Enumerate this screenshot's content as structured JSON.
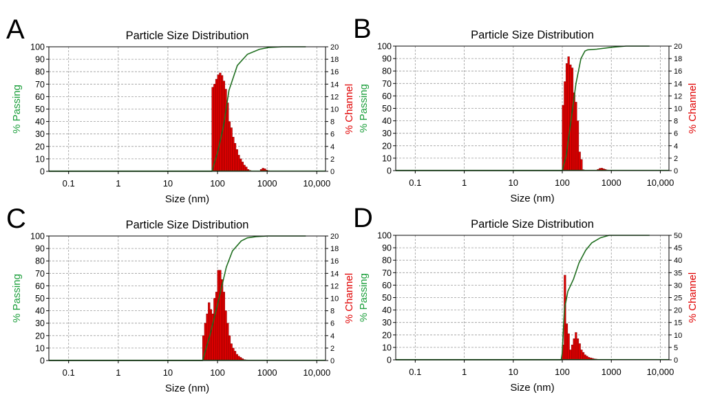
{
  "figure": {
    "colors": {
      "bars": "#e00000",
      "bar_edge": "#7a0000",
      "cumulative_line": "#1f6e1f",
      "left_axis_label": "#1a9e3a",
      "right_axis_label": "#e00000",
      "grid": "#9a9a9a"
    }
  },
  "chart_data": [
    {
      "panel_letter": "A",
      "type": "bar",
      "title": "Particle Size Distribution",
      "xlabel": "Size (nm)",
      "ylabel_left": "% Passing",
      "ylabel_right": "% Channel",
      "x_scale": "log",
      "xlim": [
        0.04,
        15000
      ],
      "x_ticks": [
        0.1,
        1,
        10,
        100,
        1000,
        10000
      ],
      "x_tick_labels": [
        "0.1",
        "1",
        "10",
        "100",
        "1000",
        "10,000"
      ],
      "ylim_left": [
        0,
        100
      ],
      "y_ticks_left": [
        0,
        10,
        20,
        30,
        40,
        50,
        60,
        70,
        80,
        90,
        100
      ],
      "ylim_right": [
        0,
        20
      ],
      "y_ticks_right": [
        0,
        2,
        4,
        6,
        8,
        10,
        12,
        14,
        16,
        18,
        20
      ],
      "grid": true,
      "bar_series": {
        "name": "% Channel",
        "bin_edges": [
          76.7,
          83.6,
          91.2,
          99.4,
          108.4,
          118.2,
          128.8,
          140.4,
          153.1,
          166.9,
          182.0,
          198.4,
          216.3,
          235.8,
          257.1,
          280.3,
          305.6,
          333.2,
          363.2,
          396.0,
          431.7,
          470.7,
          513.2,
          559.5,
          610.0,
          665.0,
          725.1,
          790.5,
          861.8,
          939.6,
          1024.4,
          1116.8
        ],
        "values": [
          13.5,
          14.0,
          14.8,
          15.5,
          15.8,
          15.4,
          14.5,
          13.2,
          11.0,
          8.0,
          7.0,
          5.5,
          4.5,
          3.5,
          2.6,
          2.0,
          1.5,
          1.0,
          0.7,
          0.3,
          0.15,
          0,
          0,
          0,
          0,
          0,
          0.3,
          0.5,
          0.4,
          0.2,
          0.1
        ]
      },
      "line_series": {
        "name": "% Passing",
        "x": [
          0.04,
          60,
          76.7,
          100,
          130,
          170,
          250,
          400,
          700,
          1100,
          2000,
          6000
        ],
        "y": [
          0,
          0,
          0,
          15,
          35,
          65,
          85,
          94,
          98,
          99.5,
          100,
          100
        ]
      }
    },
    {
      "panel_letter": "B",
      "type": "bar",
      "title": "Particle Size Distribution",
      "xlabel": "Size (nm)",
      "ylabel_left": "% Passing",
      "ylabel_right": "% Channel",
      "x_scale": "log",
      "xlim": [
        0.04,
        15000
      ],
      "x_ticks": [
        0.1,
        1,
        10,
        100,
        1000,
        10000
      ],
      "x_tick_labels": [
        "0.1",
        "1",
        "10",
        "100",
        "1000",
        "10,000"
      ],
      "ylim_left": [
        0,
        100
      ],
      "y_ticks_left": [
        0,
        10,
        20,
        30,
        40,
        50,
        60,
        70,
        80,
        90,
        100
      ],
      "ylim_right": [
        0,
        20
      ],
      "y_ticks_right": [
        0,
        2,
        4,
        6,
        8,
        10,
        12,
        14,
        16,
        18,
        20
      ],
      "grid": true,
      "bar_series": {
        "name": "% Channel",
        "bin_edges": [
          99.4,
          108.4,
          118.2,
          128.8,
          140.4,
          153.1,
          166.9,
          182.0,
          198.4,
          216.3,
          235.8,
          257.1,
          280.3,
          305.6,
          333.2,
          363.2,
          396.0,
          431.7,
          470.7,
          513.2,
          559.5,
          610.0,
          665.0,
          725.1,
          790.5,
          861.8,
          939.6,
          1024.4,
          1116.8
        ],
        "values": [
          10.5,
          14.3,
          17.2,
          18.3,
          17.0,
          16.5,
          12.5,
          11.0,
          8.0,
          3.0,
          1.8,
          0.15,
          0,
          0,
          0,
          0,
          0,
          0,
          0,
          0.2,
          0.35,
          0.4,
          0.3,
          0.2,
          0.1,
          0.05,
          0,
          0
        ]
      },
      "line_series": {
        "name": "% Passing",
        "x": [
          0.04,
          95,
          99.4,
          120,
          150,
          190,
          240,
          290,
          330,
          500,
          1000,
          2000,
          6000
        ],
        "y": [
          0,
          0,
          0,
          12,
          40,
          70,
          90,
          96,
          97,
          97.5,
          99,
          100,
          100
        ]
      }
    },
    {
      "panel_letter": "C",
      "type": "bar",
      "title": "Particle Size Distribution",
      "xlabel": "Size (nm)",
      "ylabel_left": "% Passing",
      "ylabel_right": "% Channel",
      "x_scale": "log",
      "xlim": [
        0.04,
        15000
      ],
      "x_ticks": [
        0.1,
        1,
        10,
        100,
        1000,
        10000
      ],
      "x_tick_labels": [
        "0.1",
        "1",
        "10",
        "100",
        "1000",
        "10,000"
      ],
      "ylim_left": [
        0,
        100
      ],
      "y_ticks_left": [
        0,
        10,
        20,
        30,
        40,
        50,
        60,
        70,
        80,
        90,
        100
      ],
      "ylim_right": [
        0,
        20
      ],
      "y_ticks_right": [
        0,
        2,
        4,
        6,
        8,
        10,
        12,
        14,
        16,
        18,
        20
      ],
      "grid": true,
      "bar_series": {
        "name": "% Channel",
        "bin_edges": [
          49.9,
          54.4,
          59.3,
          64.6,
          70.5,
          76.8,
          83.7,
          91.3,
          99.5,
          108.5,
          118.2,
          128.9,
          140.5,
          153.2,
          167.0,
          182.0,
          198.5,
          216.3,
          235.8,
          257.1,
          280.3,
          305.5,
          333.1,
          363.1,
          395.8
        ],
        "values": [
          4.0,
          6.0,
          7.5,
          9.3,
          8.2,
          7.5,
          10.0,
          11.0,
          14.5,
          14.5,
          13.0,
          11.0,
          8.0,
          6.0,
          4.0,
          2.7,
          2.0,
          1.5,
          1.0,
          0.7,
          0.5,
          0.3,
          0.15,
          0.1
        ]
      },
      "line_series": {
        "name": "% Passing",
        "x": [
          0.04,
          40,
          49.9,
          70,
          100,
          150,
          200,
          300,
          400,
          600,
          1000,
          6000
        ],
        "y": [
          0,
          0,
          0,
          20,
          45,
          75,
          88,
          96,
          98.5,
          99.5,
          100,
          100
        ]
      }
    },
    {
      "panel_letter": "D",
      "type": "bar",
      "title": "Particle Size Distribution",
      "xlabel": "Size (nm)",
      "ylabel_left": "% Passing",
      "ylabel_right": "% Channel",
      "x_scale": "log",
      "xlim": [
        0.04,
        15000
      ],
      "x_ticks": [
        0.1,
        1,
        10,
        100,
        1000,
        10000
      ],
      "x_tick_labels": [
        "0.1",
        "1",
        "10",
        "100",
        "1000",
        "10,000"
      ],
      "ylim_left": [
        0,
        100
      ],
      "y_ticks_left": [
        0,
        10,
        20,
        30,
        40,
        50,
        60,
        70,
        80,
        90,
        100
      ],
      "ylim_right": [
        0,
        50
      ],
      "y_ticks_right": [
        0,
        5,
        10,
        15,
        20,
        25,
        30,
        35,
        40,
        45,
        50
      ],
      "grid": true,
      "bar_series": {
        "name": "% Channel",
        "bin_edges": [
          99.4,
          108.4,
          118.2,
          128.8,
          140.4,
          153.1,
          166.9,
          182.0,
          198.4,
          216.3,
          235.8,
          257.1,
          280.3,
          305.6,
          333.2,
          363.2,
          396.0,
          431.7,
          470.7,
          513.2,
          559.5,
          610.0,
          665.0,
          725.1,
          790.5,
          861.8
        ],
        "values": [
          6.0,
          34.0,
          14.5,
          10.5,
          4.0,
          6.0,
          8.5,
          11.0,
          8.5,
          6.5,
          4.0,
          3.0,
          2.0,
          1.5,
          1.0,
          0.8,
          0.6,
          0.4,
          0.3,
          0.2,
          0.1,
          0.05,
          0,
          0,
          0
        ]
      },
      "line_series": {
        "name": "% Passing",
        "x": [
          0.04,
          95,
          99.4,
          110,
          130,
          170,
          220,
          300,
          400,
          600,
          900,
          6000
        ],
        "y": [
          0,
          0,
          5,
          40,
          55,
          65,
          78,
          88,
          94,
          98,
          100,
          100
        ]
      }
    }
  ]
}
